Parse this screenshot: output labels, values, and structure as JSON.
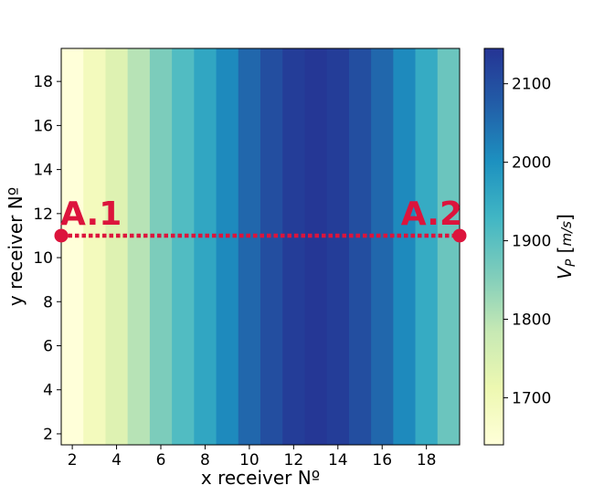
{
  "chart_data": {
    "type": "heatmap",
    "xlabel": "x receiver Nº",
    "ylabel": "y receiver Nº",
    "xlim": [
      1.5,
      19.5
    ],
    "ylim": [
      1.5,
      19.5
    ],
    "x_ticks": [
      2,
      4,
      6,
      8,
      10,
      12,
      14,
      16,
      18
    ],
    "y_ticks": [
      2,
      4,
      6,
      8,
      10,
      12,
      14,
      16,
      18
    ],
    "x_columns": [
      2,
      3,
      4,
      5,
      6,
      7,
      8,
      9,
      10,
      11,
      12,
      13,
      14,
      15,
      16,
      17,
      18,
      19
    ],
    "column_values": [
      1640,
      1690,
      1740,
      1800,
      1860,
      1910,
      1960,
      2010,
      2060,
      2100,
      2130,
      2140,
      2130,
      2100,
      2060,
      2010,
      1950,
      1880
    ],
    "colorbar": {
      "label": "V_P [m/s]",
      "range": [
        1640,
        2145
      ],
      "ticks": [
        1700,
        1800,
        1900,
        2000,
        2100
      ],
      "colormap": "YlGnBu",
      "colors": [
        "#ffffd9",
        "#edf8b1",
        "#c7e9b4",
        "#7fcdbb",
        "#41b6c4",
        "#1d91c0",
        "#225ea8",
        "#253494"
      ]
    },
    "line": {
      "start": [
        1.5,
        11
      ],
      "end": [
        19.5,
        11
      ],
      "color": "#dc143c",
      "style": "dotted"
    },
    "annotations": [
      {
        "text": "A.1",
        "x": 1.5,
        "y": 11
      },
      {
        "text": "A.2",
        "x": 19.5,
        "y": 11
      }
    ],
    "grid": false
  }
}
